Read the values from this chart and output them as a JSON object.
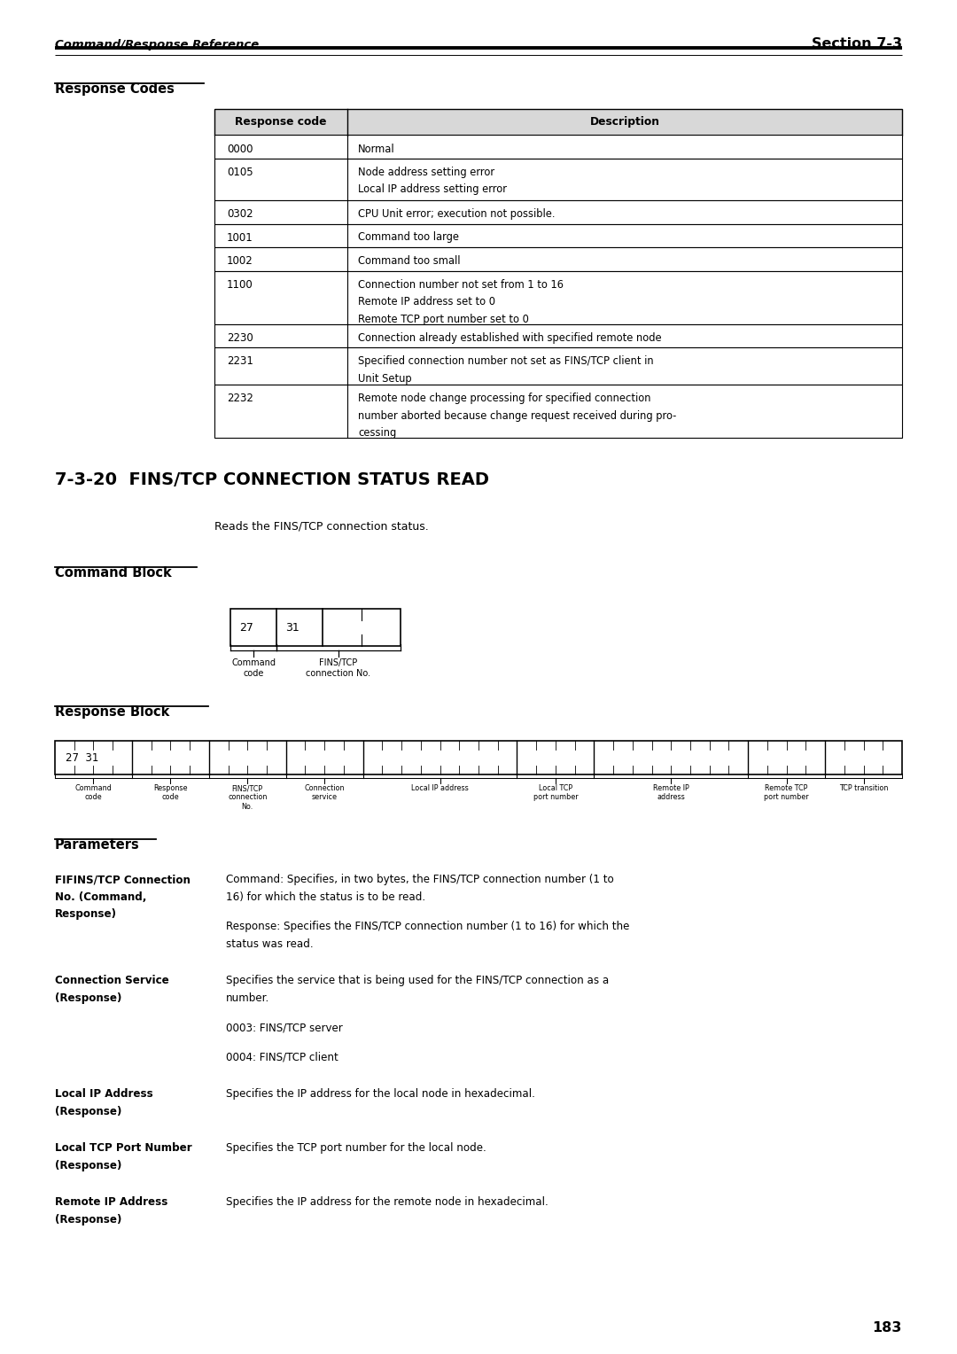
{
  "page_bg": "#ffffff",
  "header_left": "Command/Response Reference",
  "header_right": "Section 7-3",
  "response_codes_title": "Response Codes",
  "table_headers": [
    "Response code",
    "Description"
  ],
  "table_rows": [
    [
      "0000",
      "Normal"
    ],
    [
      "0105",
      "Node address setting error\nLocal IP address setting error"
    ],
    [
      "0302",
      "CPU Unit error; execution not possible."
    ],
    [
      "1001",
      "Command too large"
    ],
    [
      "1002",
      "Command too small"
    ],
    [
      "1100",
      "Connection number not set from 1 to 16\nRemote IP address set to 0\nRemote TCP port number set to 0"
    ],
    [
      "2230",
      "Connection already established with specified remote node"
    ],
    [
      "2231",
      "Specified connection number not set as FINS/TCP client in\nUnit Setup"
    ],
    [
      "2232",
      "Remote node change processing for specified connection\nnumber aborted because change request received during pro-\ncessing"
    ]
  ],
  "section_heading": "7-3-20  FINS/TCP CONNECTION STATUS READ",
  "section_desc": "Reads the FINS/TCP connection status.",
  "command_block_title": "Command Block",
  "response_block_title": "Response Block",
  "response_block_labels": [
    "Command\ncode",
    "Response\ncode",
    "FINS/TCP\nconnection\nNo.",
    "Connection\nservice",
    "Local IP address",
    "Local TCP\nport number",
    "Remote IP\naddress",
    "Remote TCP\nport number",
    "TCP transition"
  ],
  "parameters_title": "Parameters",
  "parameters": [
    {
      "term": "FIFINS/TCP Connection\nNo. (Command,\nResponse)",
      "desc": "Command: Specifies, in two bytes, the FINS/TCP connection number (1 to\n16) for which the status is to be read.\n\nResponse: Specifies the FINS/TCP connection number (1 to 16) for which the\nstatus was read."
    },
    {
      "term": "Connection Service\n(Response)",
      "desc": "Specifies the service that is being used for the FINS/TCP connection as a\nnumber.\n\n0003: FINS/TCP server\n\n0004: FINS/TCP client"
    },
    {
      "term": "Local IP Address\n(Response)",
      "desc": "Specifies the IP address for the local node in hexadecimal."
    },
    {
      "term": "Local TCP Port Number\n(Response)",
      "desc": "Specifies the TCP port number for the local node."
    },
    {
      "term": "Remote IP Address\n(Response)",
      "desc": "Specifies the IP address for the remote node in hexadecimal."
    }
  ],
  "page_number": "183"
}
